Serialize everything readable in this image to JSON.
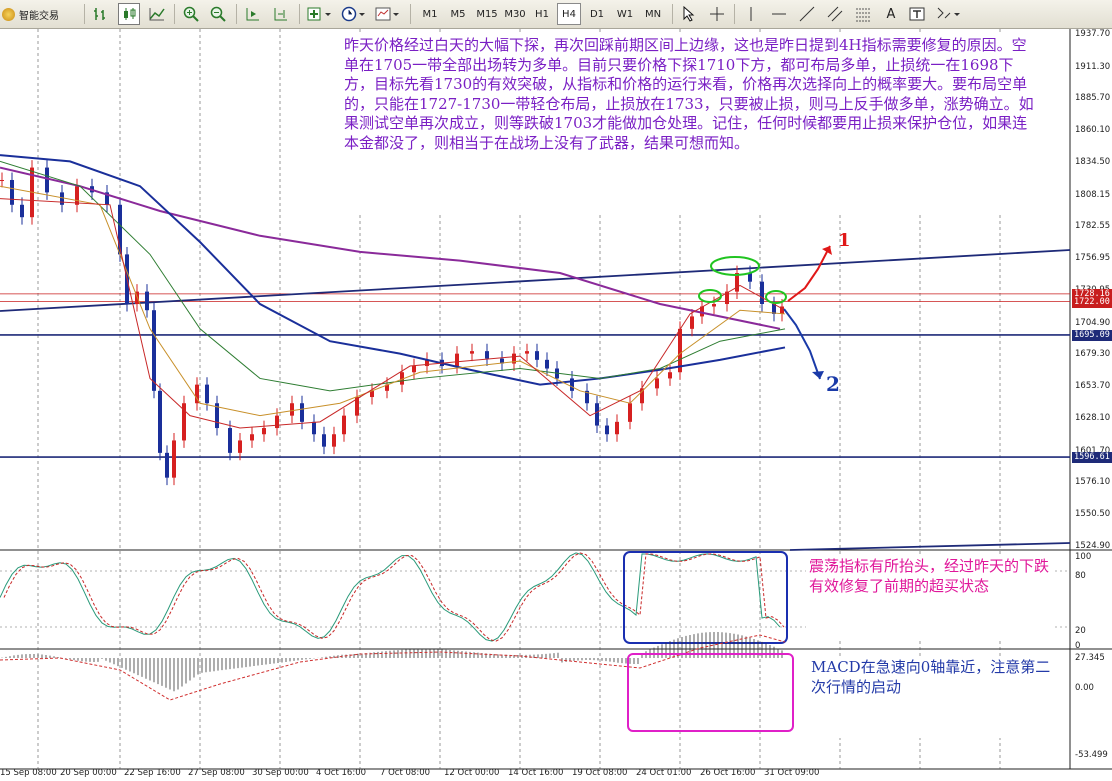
{
  "toolbar": {
    "app_label": "智能交易",
    "timeframes": [
      "M1",
      "M5",
      "M15",
      "M30",
      "H1",
      "H4",
      "D1",
      "W1",
      "MN"
    ],
    "active_timeframe": "H4",
    "draw_text_label": "A"
  },
  "annotations": {
    "main": "昨天价格经过白天的大幅下探，再次回踩前期区间上边缘，这也是昨日提到4H指标需要修复的原因。空单在1705一带全部出场转为多单。目前只要价格下探1710下方，都可布局多单，止损统一在1698下方，目标先看1730的有效突破，从指标和价格的运行来看，价格再次选择向上的概率要大。要布局空单的，只能在1727-1730一带轻仓布局，止损放在1733，只要被止损，则马上反手做多单，涨势确立。如果测试空单再次成立，则等跌破1703才能做加仓处理。记住，任何时候都要用止损来保护仓位，如果连本金都没了，则相当于在战场上没有了武器，结果可想而知。",
    "stoch": "震荡指标有所抬头，经过昨天的下跌有效修复了前期的超买状态",
    "macd": "MACD在急速向0轴靠近，注意第二次行情的启动",
    "arrow1": "1",
    "arrow2": "2"
  },
  "price_axis": [
    "1937.70",
    "1911.30",
    "1885.70",
    "1860.10",
    "1834.50",
    "1808.15",
    "1782.55",
    "1756.95",
    "1730.95",
    "1704.90",
    "1679.30",
    "1653.70",
    "1628.10",
    "1601.70",
    "1576.10",
    "1550.50",
    "1524.90"
  ],
  "price_tags": [
    {
      "value": "1728.16",
      "color": "#c81e1e",
      "text_color": "#ffffff"
    },
    {
      "value": "1722.00",
      "color": "#c81e1e",
      "text_color": "#ffffff"
    },
    {
      "value": "1695.09",
      "color": "#1e2a78",
      "text_color": "#ffffff"
    },
    {
      "value": "1596.61",
      "color": "#1e2a78",
      "text_color": "#ffffff"
    }
  ],
  "stoch_axis": [
    "100",
    "80",
    "20",
    "0"
  ],
  "macd_axis": [
    "27.345",
    "0.00",
    "-53.499"
  ],
  "time_axis": [
    "15 Sep 08:00",
    "20 Sep 00:00",
    "22 Sep 16:00",
    "27 Sep 08:00",
    "30 Sep 00:00",
    "4 Oct 16:00",
    "7 Oct 08:00",
    "12 Oct 00:00",
    "14 Oct 16:00",
    "19 Oct 08:00",
    "24 Oct 01:00",
    "26 Oct 16:00",
    "31 Oct 09:00"
  ],
  "colors": {
    "bull": "#d62020",
    "bear": "#1a2f9a",
    "ma_purple": "#8a2a9a",
    "ma_blue": "#1a2f9a"
  }
}
